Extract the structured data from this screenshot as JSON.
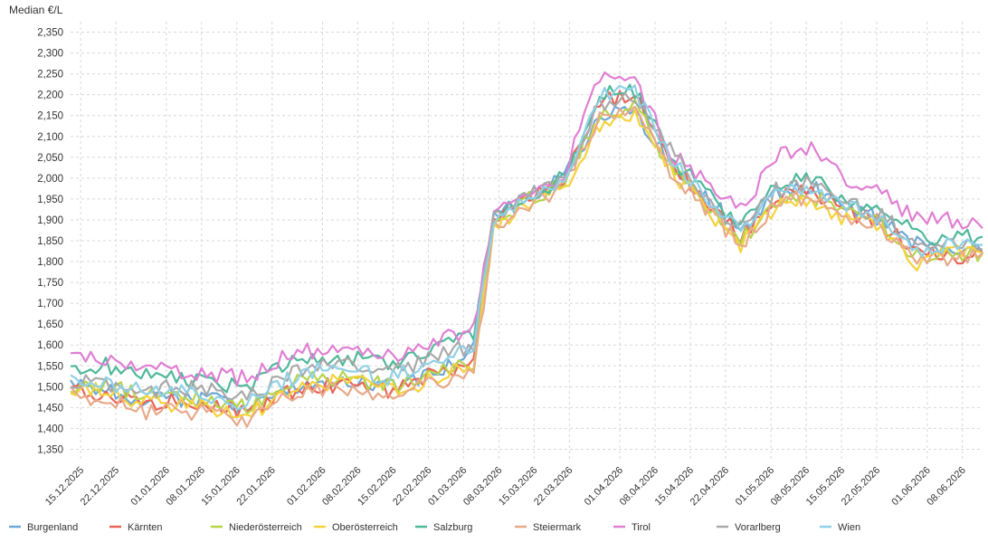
{
  "chart_data": {
    "type": "line",
    "title": "",
    "ylabel": "Median €/L",
    "xlabel": "",
    "ylim": [
      1.325,
      2.375
    ],
    "yticks": [
      "1,350",
      "1,400",
      "1,450",
      "1,500",
      "1,550",
      "1,600",
      "1,650",
      "1,700",
      "1,750",
      "1,800",
      "1,850",
      "1,900",
      "1,950",
      "2,000",
      "2,050",
      "2,100",
      "2,150",
      "2,200",
      "2,250",
      "2,300",
      "2,350"
    ],
    "x_start": "2025-12-13",
    "x_end": "2026-06-12",
    "xticks": [
      {
        "date": "2025-12-15",
        "label": "15.12.2025"
      },
      {
        "date": "2025-12-22",
        "label": "22.12.2025"
      },
      {
        "date": "2026-01-01",
        "label": "01.01.2026"
      },
      {
        "date": "2026-01-08",
        "label": "08.01.2026"
      },
      {
        "date": "2026-01-15",
        "label": "15.01.2026"
      },
      {
        "date": "2026-01-22",
        "label": "22.01.2026"
      },
      {
        "date": "2026-02-01",
        "label": "01.02.2026"
      },
      {
        "date": "2026-02-08",
        "label": "08.02.2026"
      },
      {
        "date": "2026-02-15",
        "label": "15.02.2026"
      },
      {
        "date": "2026-02-22",
        "label": "22.02.2026"
      },
      {
        "date": "2026-03-01",
        "label": "01.03.2026"
      },
      {
        "date": "2026-03-08",
        "label": "08.03.2026"
      },
      {
        "date": "2026-03-15",
        "label": "15.03.2026"
      },
      {
        "date": "2026-03-22",
        "label": "22.03.2026"
      },
      {
        "date": "2026-04-01",
        "label": "01.04.2026"
      },
      {
        "date": "2026-04-08",
        "label": "08.04.2026"
      },
      {
        "date": "2026-04-15",
        "label": "15.04.2026"
      },
      {
        "date": "2026-04-22",
        "label": "22.04.2026"
      },
      {
        "date": "2026-05-01",
        "label": "01.05.2026"
      },
      {
        "date": "2026-05-08",
        "label": "08.05.2026"
      },
      {
        "date": "2026-05-15",
        "label": "15.05.2026"
      },
      {
        "date": "2026-05-22",
        "label": "22.05.2026"
      },
      {
        "date": "2026-06-01",
        "label": "01.06.2026"
      },
      {
        "date": "2026-06-08",
        "label": "08.06.2026"
      }
    ],
    "grid": true,
    "legend_position": "bottom",
    "x": [
      "2025-12-13",
      "2025-12-20",
      "2025-12-27",
      "2026-01-03",
      "2026-01-10",
      "2026-01-17",
      "2026-01-24",
      "2026-01-31",
      "2026-02-07",
      "2026-02-14",
      "2026-02-21",
      "2026-02-28",
      "2026-03-03",
      "2026-03-07",
      "2026-03-14",
      "2026-03-21",
      "2026-03-28",
      "2026-04-04",
      "2026-04-11",
      "2026-04-18",
      "2026-04-25",
      "2026-05-02",
      "2026-05-09",
      "2026-05-16",
      "2026-05-23",
      "2026-05-30",
      "2026-06-06",
      "2026-06-12"
    ],
    "series": [
      {
        "name": "Burgenland",
        "color": "#6fa8d6",
        "values": [
          1.5,
          1.49,
          1.47,
          1.47,
          1.47,
          1.45,
          1.49,
          1.5,
          1.51,
          1.5,
          1.52,
          1.56,
          1.59,
          1.9,
          1.96,
          2.0,
          2.15,
          2.16,
          2.04,
          1.96,
          1.87,
          1.96,
          1.98,
          1.93,
          1.9,
          1.84,
          1.83,
          1.82
        ]
      },
      {
        "name": "Kärnten",
        "color": "#e8655a",
        "values": [
          1.49,
          1.48,
          1.46,
          1.47,
          1.46,
          1.44,
          1.48,
          1.5,
          1.51,
          1.49,
          1.52,
          1.55,
          1.57,
          1.89,
          1.95,
          2.0,
          2.18,
          2.2,
          2.04,
          1.95,
          1.86,
          1.95,
          1.97,
          1.92,
          1.89,
          1.82,
          1.81,
          1.82
        ]
      },
      {
        "name": "Niederösterreich",
        "color": "#b7d34a",
        "values": [
          1.5,
          1.5,
          1.48,
          1.48,
          1.47,
          1.45,
          1.5,
          1.52,
          1.52,
          1.5,
          1.52,
          1.55,
          1.56,
          1.89,
          1.95,
          1.99,
          2.15,
          2.17,
          2.03,
          1.94,
          1.85,
          1.94,
          1.96,
          1.91,
          1.89,
          1.81,
          1.82,
          1.82
        ]
      },
      {
        "name": "Oberösterreich",
        "color": "#f5d23c",
        "values": [
          1.49,
          1.49,
          1.46,
          1.46,
          1.45,
          1.43,
          1.48,
          1.51,
          1.51,
          1.49,
          1.51,
          1.54,
          1.55,
          1.88,
          1.94,
          1.98,
          2.13,
          2.15,
          2.02,
          1.93,
          1.84,
          1.93,
          1.95,
          1.9,
          1.88,
          1.79,
          1.82,
          1.82
        ]
      },
      {
        "name": "Salzburg",
        "color": "#4fb89a",
        "values": [
          1.55,
          1.55,
          1.53,
          1.52,
          1.51,
          1.5,
          1.55,
          1.57,
          1.57,
          1.55,
          1.58,
          1.61,
          1.62,
          1.9,
          1.96,
          2.0,
          2.2,
          2.21,
          2.05,
          1.97,
          1.89,
          1.98,
          2.0,
          1.95,
          1.93,
          1.86,
          1.86,
          1.86
        ]
      },
      {
        "name": "Steiermark",
        "color": "#e8a98a",
        "values": [
          1.48,
          1.47,
          1.44,
          1.44,
          1.44,
          1.42,
          1.47,
          1.49,
          1.5,
          1.48,
          1.5,
          1.53,
          1.53,
          1.88,
          1.94,
          1.98,
          2.14,
          2.16,
          2.02,
          1.93,
          1.84,
          1.94,
          1.96,
          1.9,
          1.88,
          1.81,
          1.81,
          1.82
        ]
      },
      {
        "name": "Tirol",
        "color": "#e07fd3",
        "values": [
          1.57,
          1.56,
          1.54,
          1.54,
          1.53,
          1.52,
          1.57,
          1.59,
          1.59,
          1.57,
          1.6,
          1.63,
          1.64,
          1.92,
          1.97,
          2.01,
          2.25,
          2.24,
          2.06,
          1.99,
          1.92,
          2.05,
          2.07,
          1.99,
          1.96,
          1.9,
          1.9,
          1.88
        ]
      },
      {
        "name": "Vorarlberg",
        "color": "#a9a9a9",
        "values": [
          1.51,
          1.51,
          1.49,
          1.5,
          1.49,
          1.47,
          1.52,
          1.55,
          1.55,
          1.53,
          1.56,
          1.59,
          1.6,
          1.9,
          1.96,
          2.0,
          2.18,
          2.19,
          2.07,
          1.96,
          1.88,
          1.97,
          1.99,
          1.94,
          1.91,
          1.84,
          1.84,
          1.83
        ]
      },
      {
        "name": "Wien",
        "color": "#8fd0e6",
        "values": [
          1.52,
          1.51,
          1.49,
          1.49,
          1.48,
          1.46,
          1.51,
          1.54,
          1.54,
          1.52,
          1.55,
          1.58,
          1.59,
          1.9,
          1.96,
          2.0,
          2.2,
          2.21,
          2.05,
          1.96,
          1.87,
          1.96,
          1.98,
          1.93,
          1.9,
          1.83,
          1.84,
          1.84
        ]
      }
    ]
  }
}
